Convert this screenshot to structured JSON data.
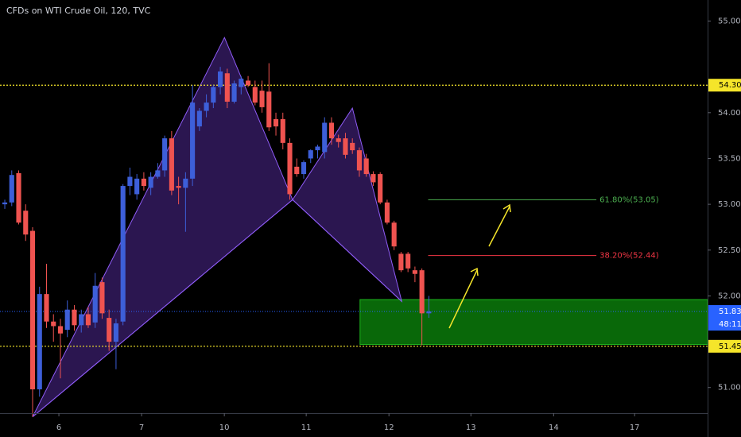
{
  "chart_data": {
    "type": "candlestick",
    "title": "CFDs on WTI Crude Oil, 120, TVC",
    "x": [
      0,
      1,
      2,
      3,
      4,
      5,
      6,
      7,
      8,
      9,
      10,
      11,
      12,
      13,
      14,
      15,
      16,
      17,
      18,
      19,
      20,
      21,
      22,
      23,
      24,
      25,
      26,
      27,
      28,
      29,
      30,
      31,
      32,
      33,
      34,
      35,
      36,
      37,
      38,
      39,
      40,
      41,
      42,
      43,
      44,
      45,
      46,
      47,
      48,
      49,
      50,
      51,
      52,
      53,
      54,
      55,
      56,
      57,
      58,
      59,
      60,
      61
    ],
    "open": [
      53.0,
      53.02,
      53.34,
      52.93,
      52.71,
      50.98,
      52.02,
      51.72,
      51.67,
      51.63,
      51.85,
      51.68,
      51.8,
      51.71,
      52.15,
      51.76,
      51.5,
      51.72,
      53.2,
      53.11,
      53.28,
      53.18,
      53.3,
      53.37,
      53.72,
      53.2,
      53.18,
      53.28,
      53.85,
      54.02,
      54.11,
      54.28,
      54.43,
      54.12,
      54.28,
      54.35,
      54.28,
      54.24,
      54.23,
      53.93,
      53.93,
      53.67,
      53.41,
      53.33,
      53.5,
      53.59,
      53.57,
      53.89,
      53.72,
      53.72,
      53.67,
      53.59,
      53.5,
      53.33,
      53.33,
      53.02,
      52.8,
      52.46,
      52.46,
      52.28,
      52.28,
      51.81
    ],
    "high": [
      53.05,
      53.37,
      53.37,
      53.0,
      52.75,
      52.1,
      52.35,
      51.8,
      51.75,
      51.95,
      51.9,
      51.85,
      51.88,
      52.25,
      52.2,
      51.85,
      51.75,
      53.22,
      53.4,
      53.33,
      53.35,
      53.35,
      53.45,
      53.75,
      53.8,
      53.3,
      53.35,
      54.3,
      54.05,
      54.2,
      54.3,
      54.5,
      54.48,
      54.35,
      54.4,
      54.4,
      54.35,
      54.35,
      54.54,
      54.0,
      54.0,
      53.72,
      53.5,
      53.48,
      53.6,
      53.65,
      53.95,
      53.95,
      53.76,
      53.78,
      53.72,
      53.62,
      53.55,
      53.36,
      53.35,
      53.05,
      52.82,
      52.48,
      52.48,
      52.32,
      52.3,
      52.0
    ],
    "low": [
      52.95,
      52.98,
      52.78,
      52.6,
      50.68,
      50.9,
      51.65,
      51.5,
      51.1,
      51.55,
      51.62,
      51.6,
      51.65,
      51.65,
      51.75,
      51.4,
      51.2,
      51.68,
      53.1,
      53.05,
      53.15,
      53.1,
      53.28,
      53.3,
      53.1,
      53.0,
      52.7,
      53.2,
      53.8,
      53.95,
      54.05,
      54.2,
      54.05,
      54.1,
      54.2,
      54.28,
      54.08,
      54.0,
      53.8,
      53.75,
      53.6,
      53.05,
      53.3,
      53.28,
      53.45,
      53.5,
      53.5,
      53.65,
      53.62,
      53.5,
      53.55,
      53.3,
      53.3,
      53.2,
      53.0,
      52.78,
      52.5,
      52.26,
      52.26,
      52.15,
      51.46,
      51.76
    ],
    "close": [
      53.02,
      53.32,
      52.8,
      52.67,
      50.98,
      52.02,
      51.72,
      51.67,
      51.59,
      51.85,
      51.68,
      51.8,
      51.68,
      52.11,
      51.81,
      51.5,
      51.7,
      53.2,
      53.3,
      53.28,
      53.2,
      53.3,
      53.37,
      53.72,
      53.15,
      53.18,
      53.28,
      54.11,
      54.02,
      54.11,
      54.28,
      54.45,
      54.12,
      54.32,
      54.37,
      54.3,
      54.11,
      54.06,
      53.84,
      53.85,
      53.67,
      53.11,
      53.33,
      53.46,
      53.59,
      53.63,
      53.89,
      53.72,
      53.68,
      53.54,
      53.59,
      53.37,
      53.33,
      53.24,
      53.02,
      52.8,
      52.54,
      52.28,
      52.3,
      52.24,
      51.81,
      51.83
    ],
    "up_color": "#3d5fd9",
    "down_color": "#ef5350",
    "xlim": [
      -0.69,
      101.1
    ],
    "xticks": [
      {
        "value": 7.78,
        "label": "6"
      },
      {
        "value": 19.68,
        "label": "7"
      },
      {
        "value": 31.58,
        "label": "10"
      },
      {
        "value": 43.36,
        "label": "11"
      },
      {
        "value": 55.26,
        "label": "12"
      },
      {
        "value": 67.05,
        "label": "13"
      },
      {
        "value": 78.95,
        "label": "14"
      },
      {
        "value": 90.6,
        "label": "17"
      }
    ],
    "ylim": [
      50.72,
      55.23
    ],
    "yticks": [
      {
        "value": 51,
        "label": "51.00"
      },
      {
        "value": 52,
        "label": "52.00"
      },
      {
        "value": 52.5,
        "label": "52.50"
      },
      {
        "value": 53,
        "label": "53.00"
      },
      {
        "value": 53.5,
        "label": "53.50"
      },
      {
        "value": 54,
        "label": "54.00"
      },
      {
        "value": 55,
        "label": "55.00"
      }
    ],
    "hlines": [
      {
        "value": 54.3,
        "label": "54.30"
      },
      {
        "value": 51.45,
        "label": "51.45"
      }
    ],
    "last_price": 51.83,
    "countdown": "48:11",
    "pattern": {
      "x": [
        4.0,
        31.6,
        41.4,
        50.0,
        57.1
      ],
      "y": [
        50.68,
        54.82,
        53.05,
        54.05,
        51.94
      ]
    },
    "zone": {
      "x_start": 51.1,
      "low": 51.47,
      "high": 51.96
    },
    "fib_x": [
      60.9,
      85.1
    ],
    "fib_levels": [
      {
        "value": 53.05,
        "label": "61.80%(53.05)",
        "color": "#4caf50"
      },
      {
        "value": 52.44,
        "label": "38.20%(52.44)",
        "color": "#f23645"
      }
    ]
  }
}
